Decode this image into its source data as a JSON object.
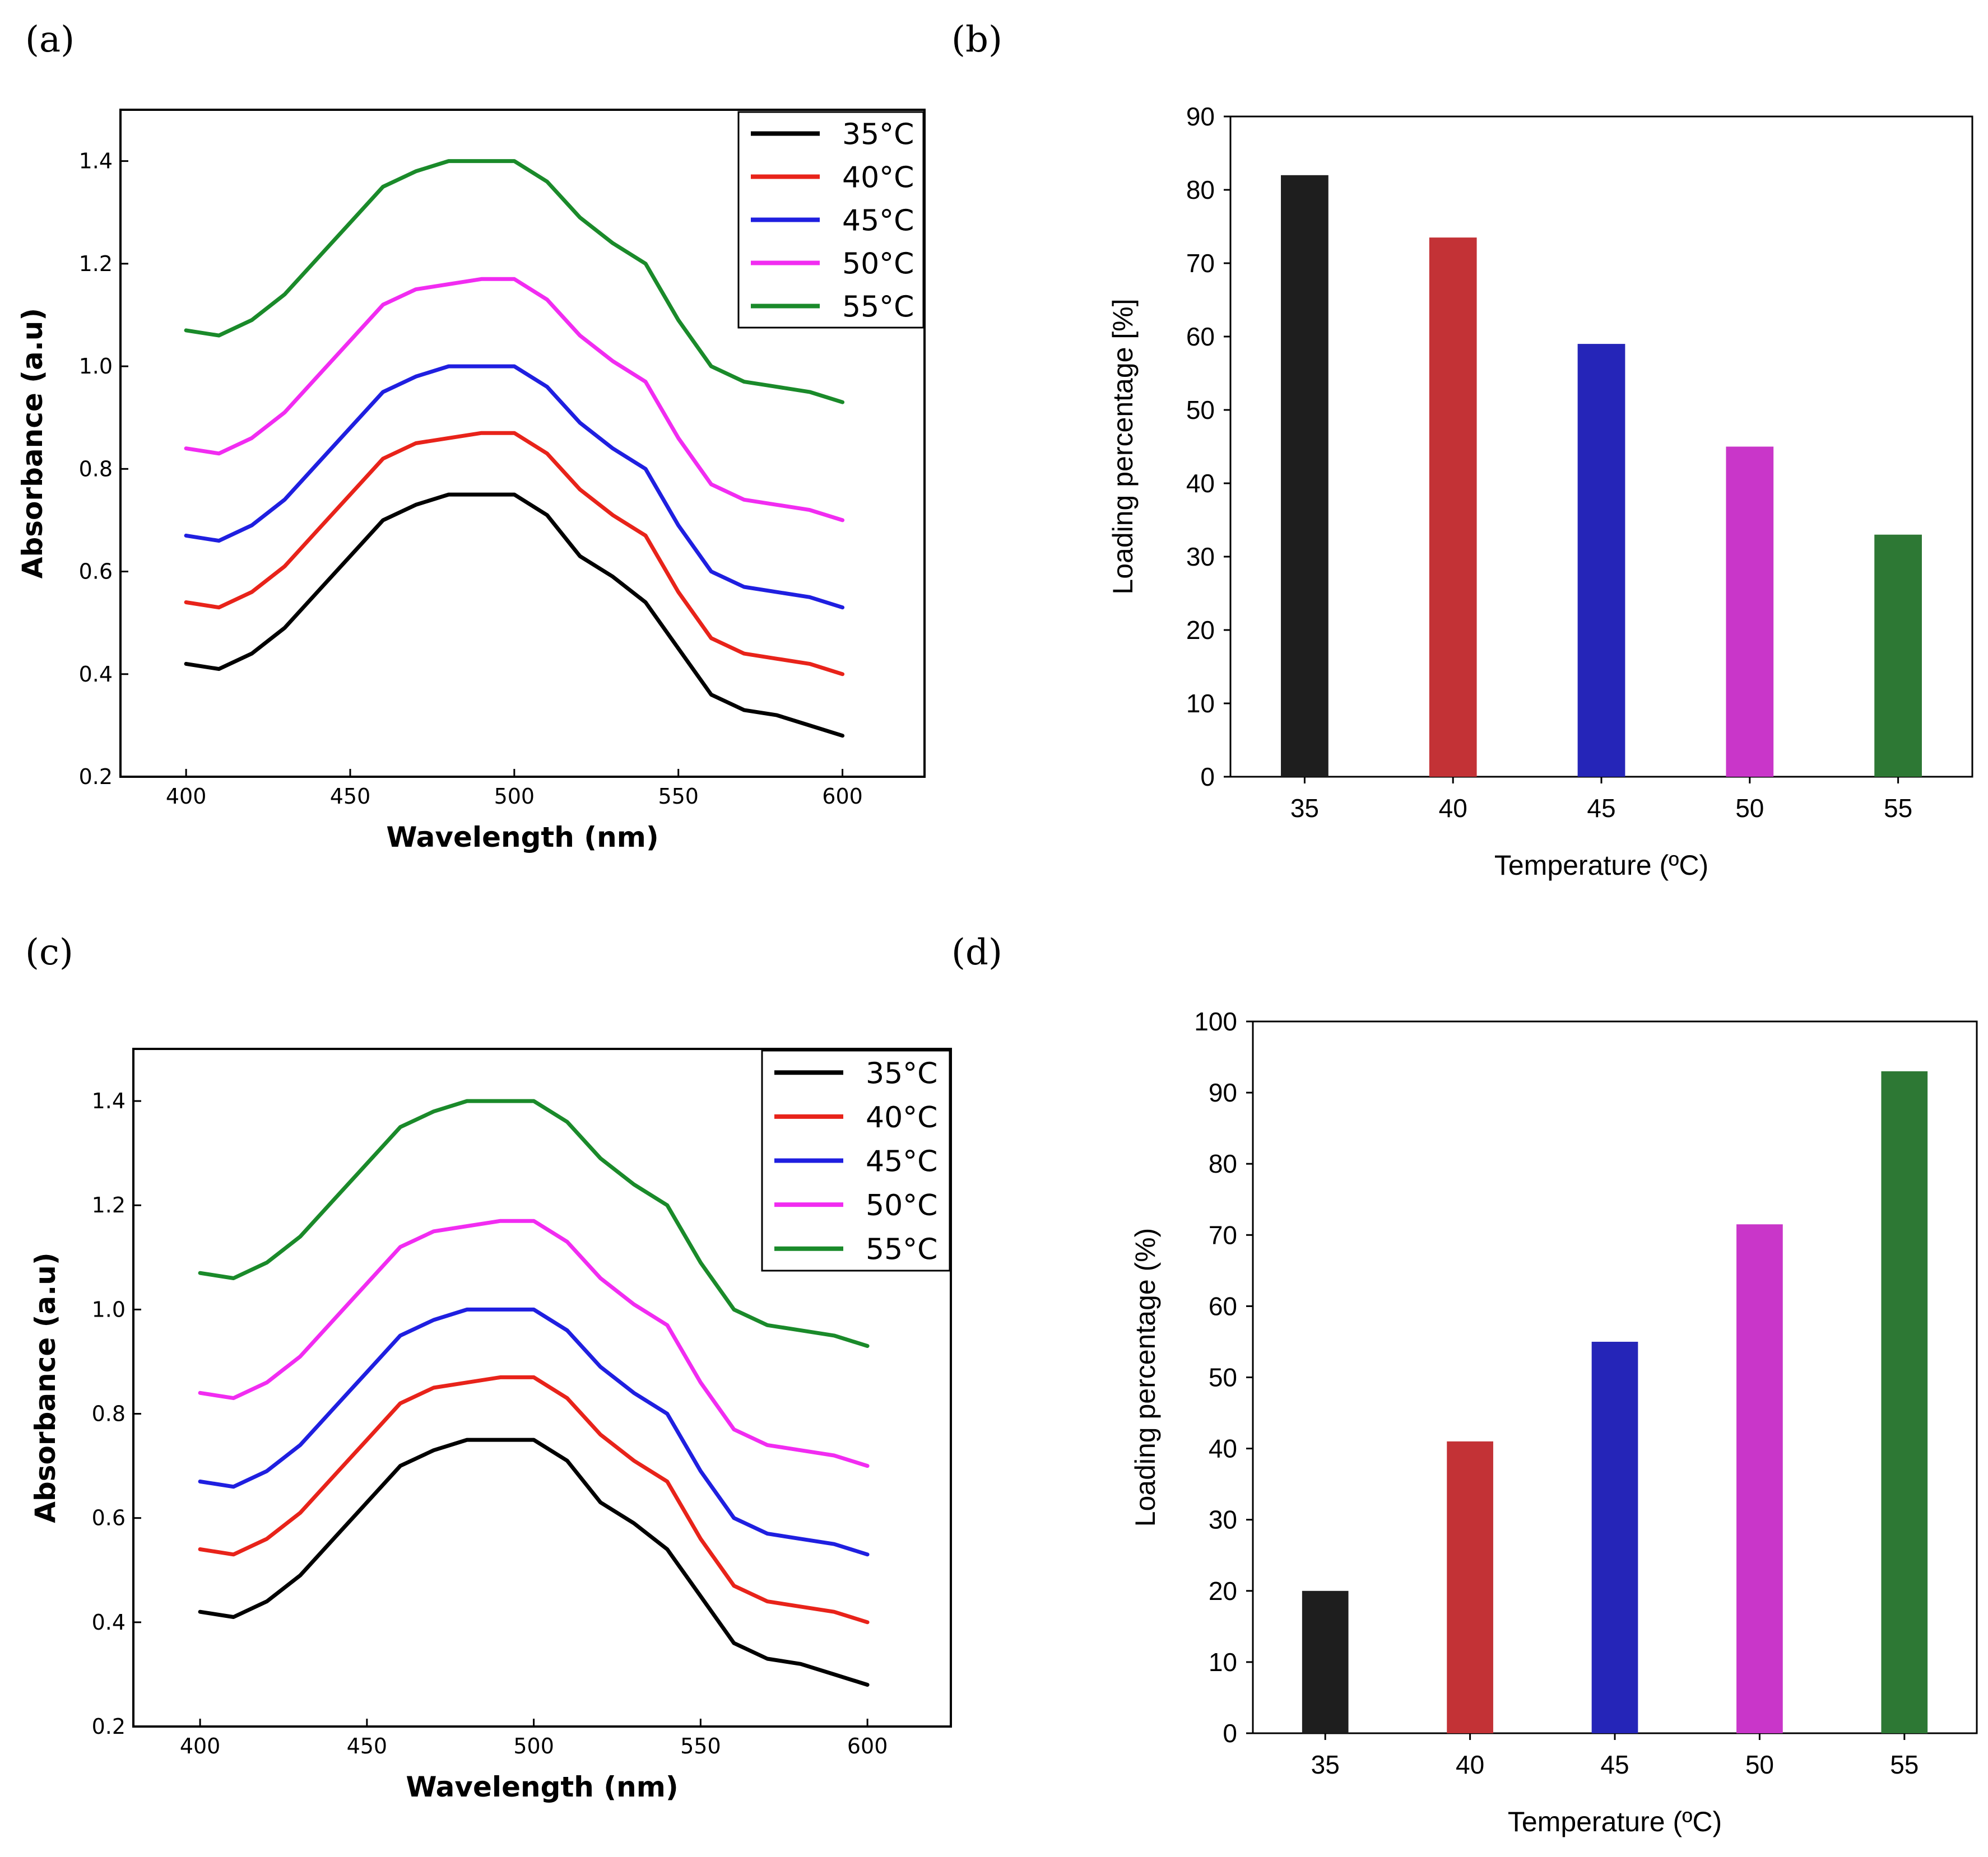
{
  "chart_data": [
    {
      "panel": "(a)",
      "type": "line",
      "xlabel": "Wavelength (nm)",
      "ylabel": "Absorbance (a.u)",
      "xlim": [
        380,
        625
      ],
      "ylim": [
        0.2,
        1.5
      ],
      "xticks": [
        400,
        450,
        500,
        550,
        600
      ],
      "yticks": [
        0.2,
        0.4,
        0.6,
        0.8,
        1.0,
        1.2,
        1.4
      ],
      "ytick_labels": [
        "0.2",
        "0.4",
        "0.6",
        "0.8",
        "1.0",
        "1.2",
        "1.4"
      ],
      "x": [
        400,
        410,
        420,
        430,
        440,
        450,
        460,
        470,
        480,
        490,
        500,
        510,
        520,
        530,
        540,
        550,
        560,
        570,
        580,
        590,
        600
      ],
      "series": [
        {
          "name": "35°C",
          "color": "#000000",
          "values": [
            0.42,
            0.41,
            0.44,
            0.49,
            0.56,
            0.63,
            0.7,
            0.73,
            0.75,
            0.75,
            0.75,
            0.71,
            0.63,
            0.59,
            0.54,
            0.45,
            0.36,
            0.33,
            0.32,
            0.3,
            0.28
          ]
        },
        {
          "name": "40°C",
          "color": "#e8231a",
          "values": [
            0.54,
            0.53,
            0.56,
            0.61,
            0.68,
            0.75,
            0.82,
            0.85,
            0.86,
            0.87,
            0.87,
            0.83,
            0.76,
            0.71,
            0.67,
            0.56,
            0.47,
            0.44,
            0.43,
            0.42,
            0.4
          ]
        },
        {
          "name": "45°C",
          "color": "#1f1fe0",
          "values": [
            0.67,
            0.66,
            0.69,
            0.74,
            0.81,
            0.88,
            0.95,
            0.98,
            1.0,
            1.0,
            1.0,
            0.96,
            0.89,
            0.84,
            0.8,
            0.69,
            0.6,
            0.57,
            0.56,
            0.55,
            0.53
          ]
        },
        {
          "name": "50°C",
          "color": "#f12cf1",
          "values": [
            0.84,
            0.83,
            0.86,
            0.91,
            0.98,
            1.05,
            1.12,
            1.15,
            1.16,
            1.17,
            1.17,
            1.13,
            1.06,
            1.01,
            0.97,
            0.86,
            0.77,
            0.74,
            0.73,
            0.72,
            0.7
          ]
        },
        {
          "name": "55°C",
          "color": "#1a8a2a",
          "values": [
            1.07,
            1.06,
            1.09,
            1.14,
            1.21,
            1.28,
            1.35,
            1.38,
            1.4,
            1.4,
            1.4,
            1.36,
            1.29,
            1.24,
            1.2,
            1.09,
            1.0,
            0.97,
            0.96,
            0.95,
            0.93
          ]
        }
      ]
    },
    {
      "panel": "(b)",
      "type": "bar",
      "xlabel": "Temperature (ºC)",
      "ylabel": "Loading percentage [%]",
      "ylim": [
        0,
        90
      ],
      "yticks": [
        0,
        10,
        20,
        30,
        40,
        50,
        60,
        70,
        80,
        90
      ],
      "categories": [
        "35",
        "40",
        "45",
        "50",
        "55"
      ],
      "values": [
        82,
        73.5,
        59,
        45,
        33
      ],
      "colors": [
        "#1e1e1e",
        "#c33236",
        "#2525b8",
        "#c936c9",
        "#2d7834"
      ]
    },
    {
      "panel": "(c)",
      "type": "line",
      "xlabel": "Wavelength (nm)",
      "ylabel": "Absorbance (a.u)",
      "xlim": [
        380,
        625
      ],
      "ylim": [
        0.2,
        1.5
      ],
      "xticks": [
        400,
        450,
        500,
        550,
        600
      ],
      "yticks": [
        0.2,
        0.4,
        0.6,
        0.8,
        1.0,
        1.2,
        1.4
      ],
      "ytick_labels": [
        "0.2",
        "0.4",
        "0.6",
        "0.8",
        "1.0",
        "1.2",
        "1.4"
      ],
      "x": [
        400,
        410,
        420,
        430,
        440,
        450,
        460,
        470,
        480,
        490,
        500,
        510,
        520,
        530,
        540,
        550,
        560,
        570,
        580,
        590,
        600
      ],
      "series": [
        {
          "name": "35°C",
          "color": "#000000",
          "values": [
            0.42,
            0.41,
            0.44,
            0.49,
            0.56,
            0.63,
            0.7,
            0.73,
            0.75,
            0.75,
            0.75,
            0.71,
            0.63,
            0.59,
            0.54,
            0.45,
            0.36,
            0.33,
            0.32,
            0.3,
            0.28
          ]
        },
        {
          "name": "40°C",
          "color": "#e8231a",
          "values": [
            0.54,
            0.53,
            0.56,
            0.61,
            0.68,
            0.75,
            0.82,
            0.85,
            0.86,
            0.87,
            0.87,
            0.83,
            0.76,
            0.71,
            0.67,
            0.56,
            0.47,
            0.44,
            0.43,
            0.42,
            0.4
          ]
        },
        {
          "name": "45°C",
          "color": "#1f1fe0",
          "values": [
            0.67,
            0.66,
            0.69,
            0.74,
            0.81,
            0.88,
            0.95,
            0.98,
            1.0,
            1.0,
            1.0,
            0.96,
            0.89,
            0.84,
            0.8,
            0.69,
            0.6,
            0.57,
            0.56,
            0.55,
            0.53
          ]
        },
        {
          "name": "50°C",
          "color": "#f12cf1",
          "values": [
            0.84,
            0.83,
            0.86,
            0.91,
            0.98,
            1.05,
            1.12,
            1.15,
            1.16,
            1.17,
            1.17,
            1.13,
            1.06,
            1.01,
            0.97,
            0.86,
            0.77,
            0.74,
            0.73,
            0.72,
            0.7
          ]
        },
        {
          "name": "55°C",
          "color": "#1a8a2a",
          "values": [
            1.07,
            1.06,
            1.09,
            1.14,
            1.21,
            1.28,
            1.35,
            1.38,
            1.4,
            1.4,
            1.4,
            1.36,
            1.29,
            1.24,
            1.2,
            1.09,
            1.0,
            0.97,
            0.96,
            0.95,
            0.93
          ]
        }
      ]
    },
    {
      "panel": "(d)",
      "type": "bar",
      "xlabel": "Temperature (ºC)",
      "ylabel": "Loading percentage (%)",
      "ylim": [
        0,
        100
      ],
      "yticks": [
        0,
        10,
        20,
        30,
        40,
        50,
        60,
        70,
        80,
        90,
        100
      ],
      "categories": [
        "35",
        "40",
        "45",
        "50",
        "55"
      ],
      "values": [
        20,
        41,
        55,
        71.5,
        93
      ],
      "colors": [
        "#1e1e1e",
        "#c33236",
        "#2525b8",
        "#c936c9",
        "#2d7834"
      ]
    }
  ]
}
